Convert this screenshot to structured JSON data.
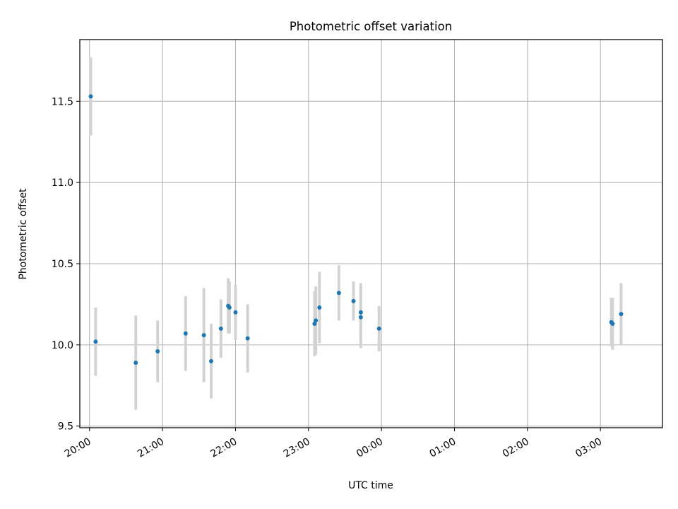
{
  "chart_data": {
    "type": "scatter",
    "title": "Photometric offset variation",
    "xlabel": "UTC time",
    "ylabel": "Photometric offset",
    "x_tick_labels": [
      "20:00",
      "21:00",
      "22:00",
      "23:00",
      "00:00",
      "01:00",
      "02:00",
      "03:00"
    ],
    "y_ticks": [
      9.5,
      10.0,
      10.5,
      11.0,
      11.5
    ],
    "y_tick_labels": [
      "9.5",
      "10.0",
      "10.5",
      "11.0",
      "11.5"
    ],
    "xlim": [
      "19:52",
      "03:51"
    ],
    "ylim": [
      9.49,
      11.88
    ],
    "grid": true,
    "marker_color": "#1f77b4",
    "errorbar_color": "#d3d3d3",
    "points": [
      {
        "time": "20:01",
        "offset": 11.53,
        "err": 0.24
      },
      {
        "time": "20:05",
        "offset": 10.02,
        "err": 0.21
      },
      {
        "time": "20:38",
        "offset": 9.89,
        "err": 0.29
      },
      {
        "time": "20:56",
        "offset": 9.96,
        "err": 0.19
      },
      {
        "time": "21:19",
        "offset": 10.07,
        "err": 0.23
      },
      {
        "time": "21:34",
        "offset": 10.06,
        "err": 0.29
      },
      {
        "time": "21:40",
        "offset": 9.9,
        "err": 0.23
      },
      {
        "time": "21:48",
        "offset": 10.1,
        "err": 0.18
      },
      {
        "time": "21:54",
        "offset": 10.24,
        "err": 0.17
      },
      {
        "time": "21:55",
        "offset": 10.23,
        "err": 0.16
      },
      {
        "time": "22:00",
        "offset": 10.2,
        "err": 0.17
      },
      {
        "time": "22:10",
        "offset": 10.04,
        "err": 0.21
      },
      {
        "time": "23:05",
        "offset": 10.13,
        "err": 0.2
      },
      {
        "time": "23:06",
        "offset": 10.15,
        "err": 0.21
      },
      {
        "time": "23:09",
        "offset": 10.23,
        "err": 0.22
      },
      {
        "time": "23:25",
        "offset": 10.32,
        "err": 0.17
      },
      {
        "time": "23:37",
        "offset": 10.27,
        "err": 0.12
      },
      {
        "time": "23:43",
        "offset": 10.2,
        "err": 0.18
      },
      {
        "time": "23:43",
        "offset": 10.17,
        "err": 0.19
      },
      {
        "time": "23:58",
        "offset": 10.1,
        "err": 0.14
      },
      {
        "time": "03:09",
        "offset": 10.14,
        "err": 0.15
      },
      {
        "time": "03:10",
        "offset": 10.13,
        "err": 0.16
      },
      {
        "time": "03:17",
        "offset": 10.19,
        "err": 0.19
      }
    ]
  }
}
